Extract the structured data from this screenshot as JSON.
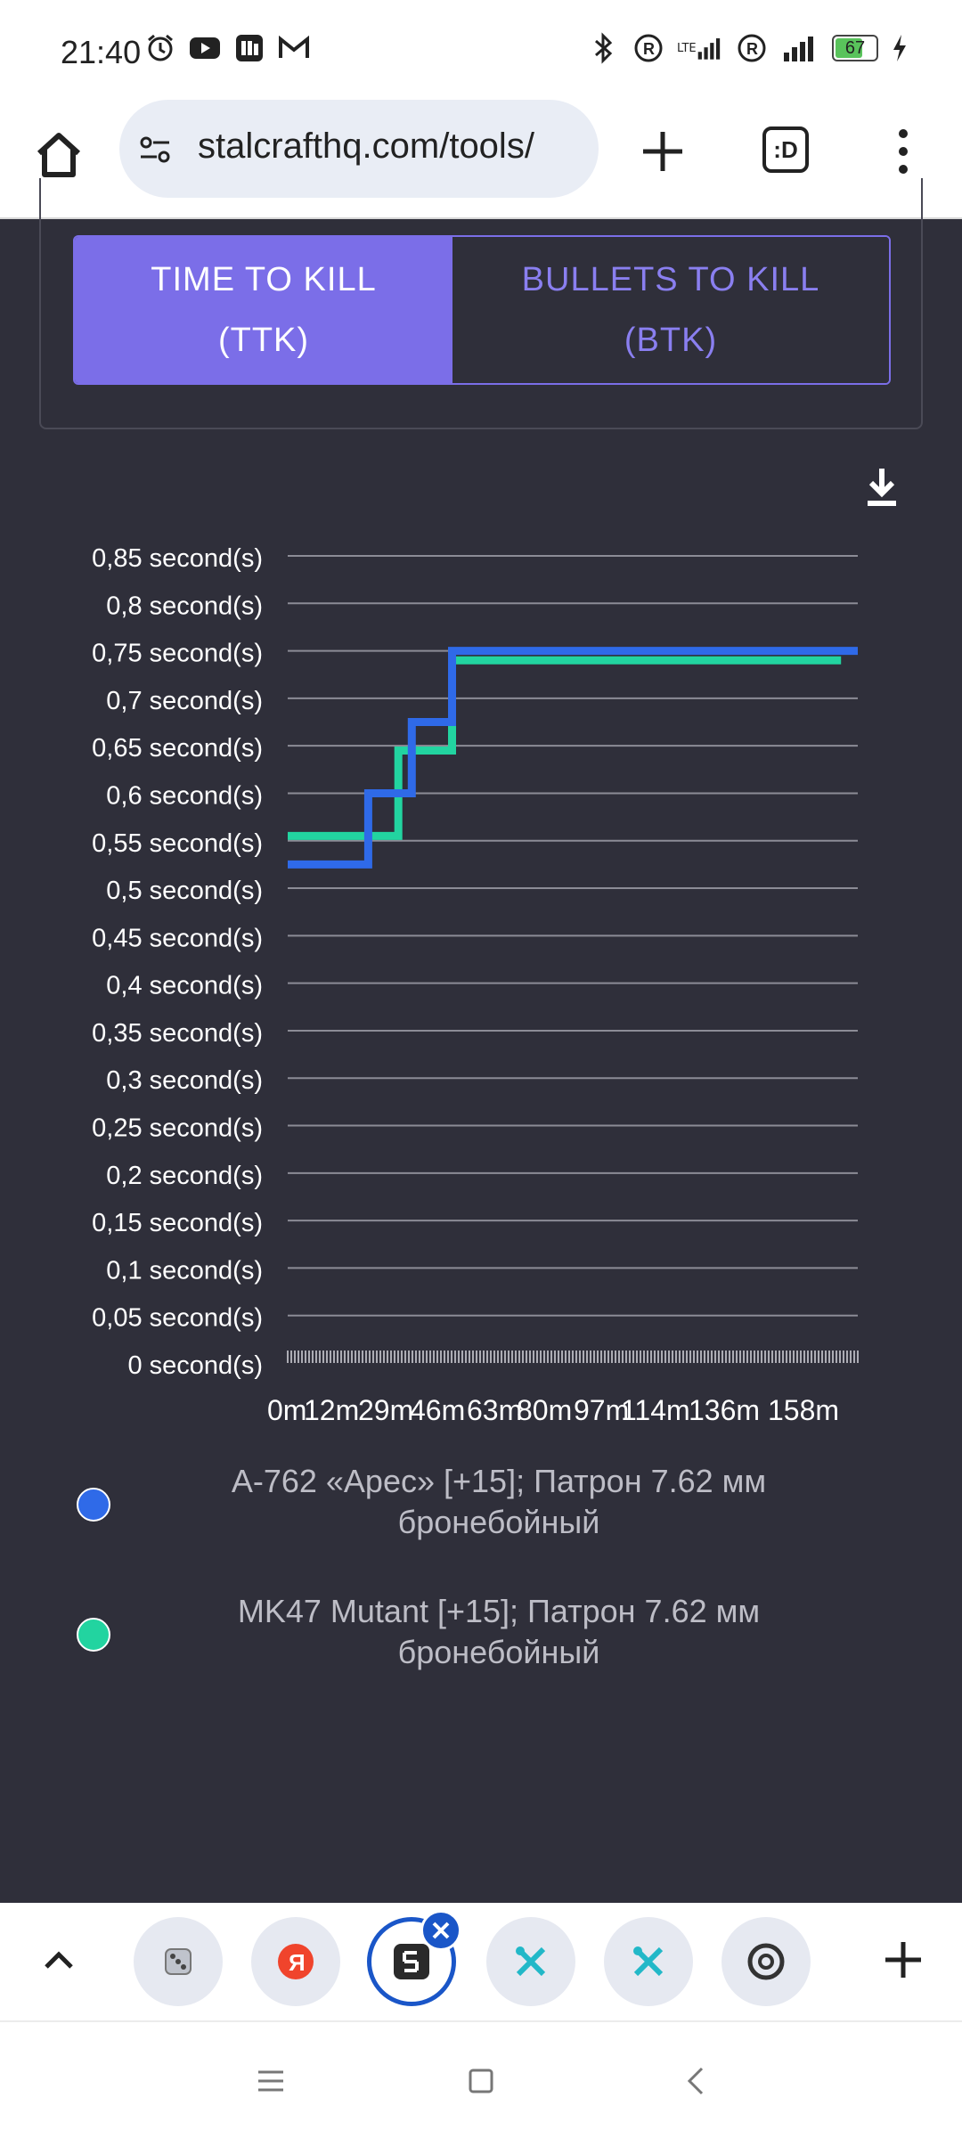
{
  "status_bar": {
    "time": "21:40",
    "network_type": "LTE",
    "battery": "67"
  },
  "browser": {
    "url": "stalcrafthq.com/tools/",
    "tab_switcher_label": ":D"
  },
  "toggle": {
    "ttk_label": "TIME TO KILL (TTK)",
    "btk_label": "BULLETS TO KILL (BTK)"
  },
  "colors": {
    "accent": "#7b6ee8",
    "series_blue": "#2f6ae8",
    "series_green": "#22d4a0",
    "background": "#2f2f3a"
  },
  "chart_data": {
    "type": "line",
    "step": true,
    "title": "",
    "xlabel": "",
    "ylabel": "",
    "ylim": [
      0,
      0.85
    ],
    "y_ticks": [
      "0 second(s)",
      "0,05 second(s)",
      "0,1 second(s)",
      "0,15 second(s)",
      "0,2 second(s)",
      "0,25 second(s)",
      "0,3 second(s)",
      "0,35 second(s)",
      "0,4 second(s)",
      "0,45 second(s)",
      "0,5 second(s)",
      "0,55 second(s)",
      "0,6 second(s)",
      "0,65 second(s)",
      "0,7 second(s)",
      "0,75 second(s)",
      "0,8 second(s)",
      "0,85 second(s)"
    ],
    "x_range": [
      0,
      170
    ],
    "x_ticks": [
      "0m",
      "12m",
      "29m",
      "46m",
      "63m",
      "80m",
      "97m",
      "114m",
      "136m",
      "158m"
    ],
    "series": [
      {
        "name": "А-762 «Арес» [+15]; Патрон 7.62 мм бронебойный",
        "color": "#2f6ae8",
        "x": [
          0,
          24,
          24,
          37,
          37,
          49,
          49,
          170
        ],
        "y": [
          0.525,
          0.525,
          0.6,
          0.6,
          0.675,
          0.675,
          0.75,
          0.75
        ]
      },
      {
        "name": "MK47 Mutant [+15]; Патрон 7.62 мм бронебойный",
        "color": "#22d4a0",
        "x": [
          0,
          33,
          33,
          49,
          49,
          165
        ],
        "y": [
          0.555,
          0.555,
          0.645,
          0.645,
          0.74,
          0.74
        ]
      }
    ],
    "legend_position": "bottom"
  },
  "legend": [
    {
      "line1": "А-762 «Арес» [+15]; Патрон 7.62 мм",
      "line2": "бронебойный",
      "color": "#2f6ae8"
    },
    {
      "line1": "MK47 Mutant [+15]; Патрон 7.62 мм",
      "line2": "бронебойный",
      "color": "#22d4a0"
    }
  ],
  "icons": {
    "status_left": [
      "alarm-icon",
      "youtube-icon",
      "app-icon",
      "gmail-icon"
    ],
    "status_right": [
      "bluetooth-icon",
      "roaming-icon",
      "signal-icon",
      "battery-icon",
      "charging-icon"
    ],
    "tabs": [
      "dice-app-icon",
      "yandex-icon",
      "stalcraft-icon",
      "tools-icon",
      "tools-icon",
      "chrome-icon"
    ]
  }
}
